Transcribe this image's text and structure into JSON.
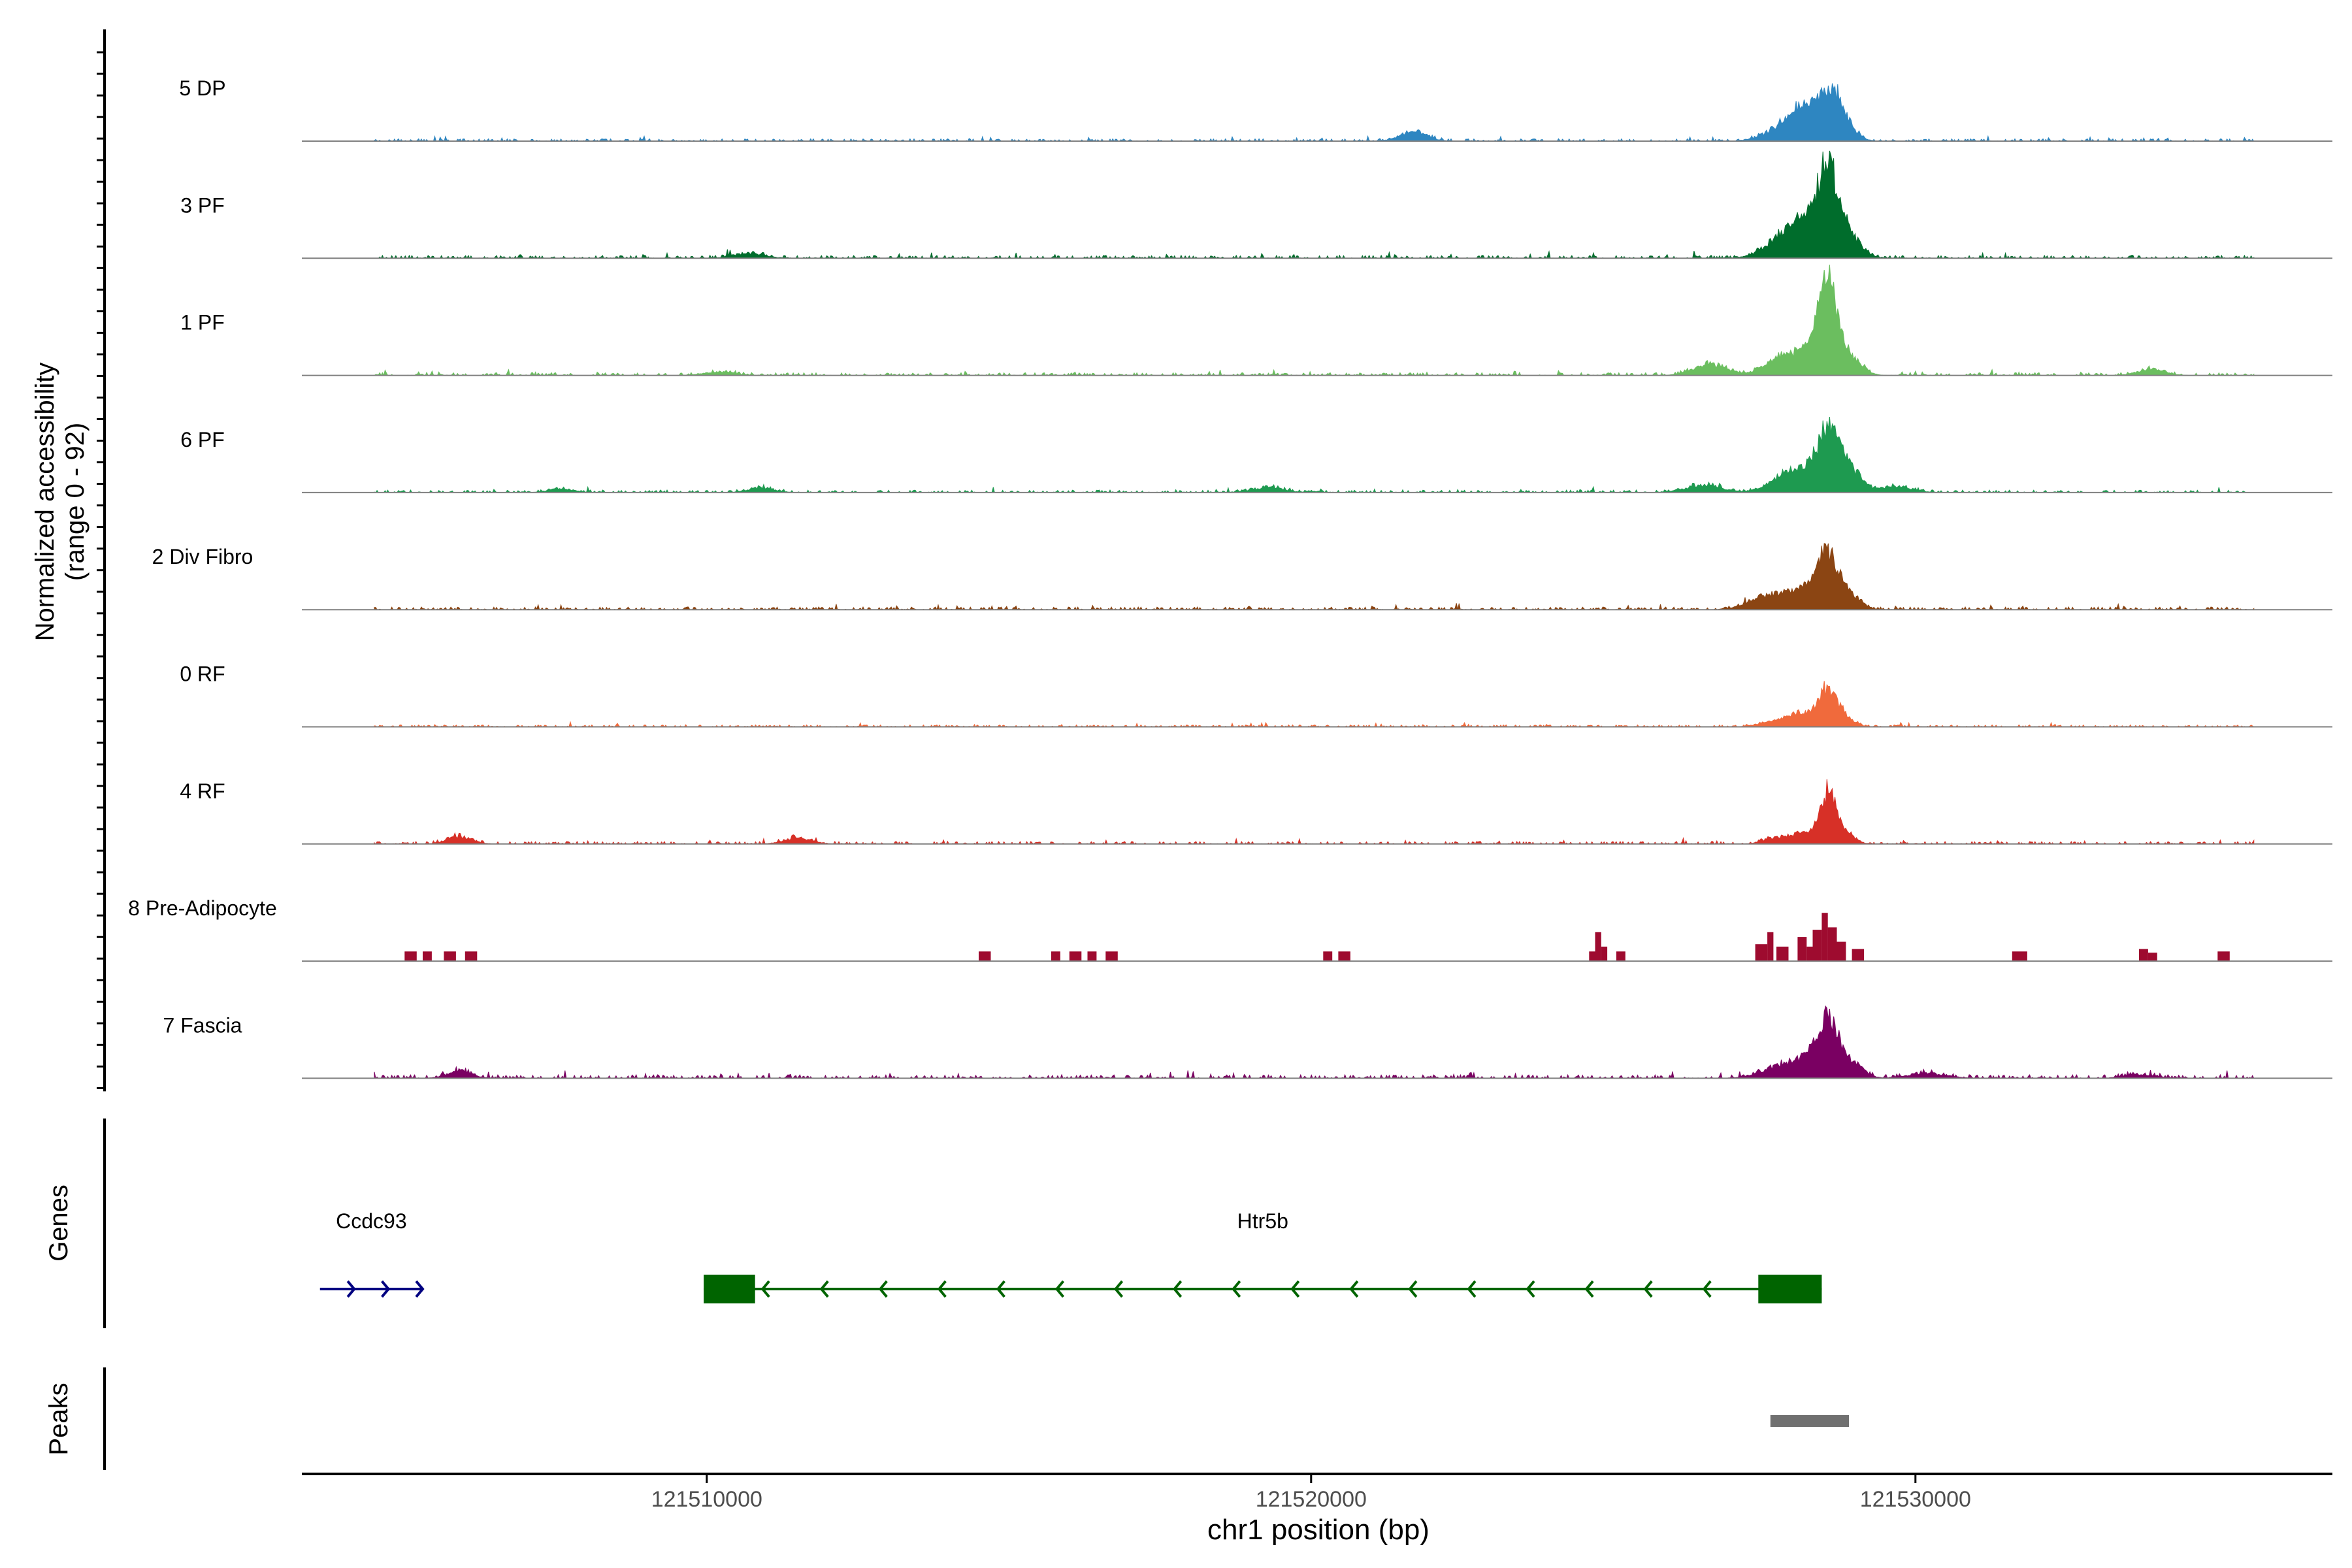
{
  "chart_data": {
    "type": "area",
    "ylabel_line1": "Normalized accessibility",
    "ylabel_line2": "(range 0 - 92)",
    "xlabel": "chr1 position (bp)",
    "xlim": [
      121503300,
      121536900
    ],
    "xticks": [
      121510000,
      121520000,
      121530000
    ],
    "xtick_labels": [
      "121510000",
      "121520000",
      "121530000"
    ],
    "track_ylim": [
      0,
      92
    ],
    "tracks": [
      {
        "name": "5 DP",
        "color": "#2E86C1",
        "style": "smooth",
        "bg": 1.2,
        "peaks": [
          [
            121521700,
            8,
            220
          ],
          [
            121527900,
            14,
            320
          ],
          [
            121528200,
            20,
            200
          ],
          [
            121528600,
            42,
            160
          ],
          [
            121528900,
            10,
            160
          ]
        ]
      },
      {
        "name": "3 PF",
        "color": "#006D2C",
        "style": "smooth",
        "bg": 1.5,
        "peaks": [
          [
            121510700,
            4,
            250
          ],
          [
            121527800,
            16,
            300
          ],
          [
            121528150,
            24,
            220
          ],
          [
            121528550,
            70,
            170
          ],
          [
            121528900,
            18,
            200
          ]
        ]
      },
      {
        "name": "1 PF",
        "color": "#6BBE5F",
        "style": "smooth",
        "bg": 1.4,
        "peaks": [
          [
            121503600,
            6,
            120
          ],
          [
            121510200,
            3,
            250
          ],
          [
            121526600,
            10,
            260
          ],
          [
            121527700,
            8,
            260
          ],
          [
            121528100,
            16,
            300
          ],
          [
            121528550,
            70,
            170
          ],
          [
            121528950,
            12,
            180
          ],
          [
            121533900,
            5,
            220
          ]
        ]
      },
      {
        "name": "6 PF",
        "color": "#1E9A50",
        "style": "smooth",
        "bg": 1.3,
        "peaks": [
          [
            121503700,
            2,
            150
          ],
          [
            121507600,
            3,
            200
          ],
          [
            121510900,
            4,
            200
          ],
          [
            121519300,
            4,
            250
          ],
          [
            121526500,
            6,
            300
          ],
          [
            121527800,
            12,
            250
          ],
          [
            121528200,
            14,
            230
          ],
          [
            121528550,
            46,
            170
          ],
          [
            121528900,
            20,
            200
          ],
          [
            121529700,
            5,
            250
          ]
        ]
      },
      {
        "name": "2 Div Fibro",
        "color": "#8B4513",
        "style": "smooth",
        "bg": 1.4,
        "peaks": [
          [
            121527400,
            6,
            250
          ],
          [
            121527800,
            10,
            300
          ],
          [
            121528250,
            14,
            220
          ],
          [
            121528550,
            40,
            170
          ],
          [
            121528900,
            12,
            180
          ]
        ]
      },
      {
        "name": "0 RF",
        "color": "#F06A3C",
        "style": "smooth",
        "bg": 1.0,
        "peaks": [
          [
            121527700,
            4,
            250
          ],
          [
            121528100,
            10,
            220
          ],
          [
            121528550,
            30,
            160
          ],
          [
            121528850,
            6,
            150
          ]
        ]
      },
      {
        "name": "4 RF",
        "color": "#D73027",
        "style": "smooth",
        "bg": 1.3,
        "peaks": [
          [
            121505900,
            6,
            200
          ],
          [
            121511500,
            5,
            220
          ],
          [
            121527700,
            5,
            200
          ],
          [
            121528150,
            8,
            200
          ],
          [
            121528550,
            42,
            130
          ],
          [
            121528850,
            8,
            150
          ]
        ]
      },
      {
        "name": "8 Pre-Adipocyte",
        "color": "#9E0B2F",
        "style": "blocks",
        "blocks": [
          [
            121505000,
            121505200,
            8
          ],
          [
            121505300,
            121505450,
            8
          ],
          [
            121505650,
            121505850,
            8
          ],
          [
            121506000,
            121506200,
            8
          ],
          [
            121514500,
            121514700,
            8
          ],
          [
            121515700,
            121515850,
            8
          ],
          [
            121516000,
            121516200,
            8
          ],
          [
            121516300,
            121516450,
            8
          ],
          [
            121516600,
            121516800,
            8
          ],
          [
            121520200,
            121520350,
            8
          ],
          [
            121520450,
            121520650,
            8
          ],
          [
            121524600,
            121524700,
            8
          ],
          [
            121524700,
            121524800,
            24
          ],
          [
            121524800,
            121524900,
            12
          ],
          [
            121525050,
            121525200,
            8
          ],
          [
            121527350,
            121527550,
            14
          ],
          [
            121527550,
            121527650,
            24
          ],
          [
            121527700,
            121527900,
            12
          ],
          [
            121528050,
            121528200,
            20
          ],
          [
            121528200,
            121528300,
            12
          ],
          [
            121528300,
            121528450,
            26
          ],
          [
            121528450,
            121528550,
            40
          ],
          [
            121528550,
            121528700,
            28
          ],
          [
            121528700,
            121528850,
            16
          ],
          [
            121528950,
            121529150,
            10
          ],
          [
            121531600,
            121531850,
            8
          ],
          [
            121533700,
            121533850,
            10
          ],
          [
            121533850,
            121534000,
            7
          ],
          [
            121535000,
            121535200,
            8
          ]
        ]
      },
      {
        "name": "7 Fascia",
        "color": "#7A0062",
        "style": "smooth",
        "bg": 1.8,
        "peaks": [
          [
            121505900,
            6,
            200
          ],
          [
            121527700,
            8,
            300
          ],
          [
            121528200,
            14,
            250
          ],
          [
            121528550,
            40,
            170
          ],
          [
            121528900,
            14,
            200
          ],
          [
            121530200,
            4,
            300
          ],
          [
            121533700,
            3,
            250
          ]
        ]
      }
    ],
    "genes_label": "Genes",
    "genes": [
      {
        "name": "Ccdc93",
        "strand": "+",
        "color": "#000080",
        "start": 121503600,
        "end": 121505300,
        "exons": []
      },
      {
        "name": "Htr5b",
        "strand": "-",
        "color": "#006400",
        "start": 121509950,
        "end": 121528450,
        "exons": [
          [
            121509950,
            121510800
          ],
          [
            121527400,
            121528450
          ]
        ]
      }
    ],
    "peaks_label": "Peaks",
    "peak_regions": [
      [
        121527600,
        121528900
      ]
    ]
  }
}
